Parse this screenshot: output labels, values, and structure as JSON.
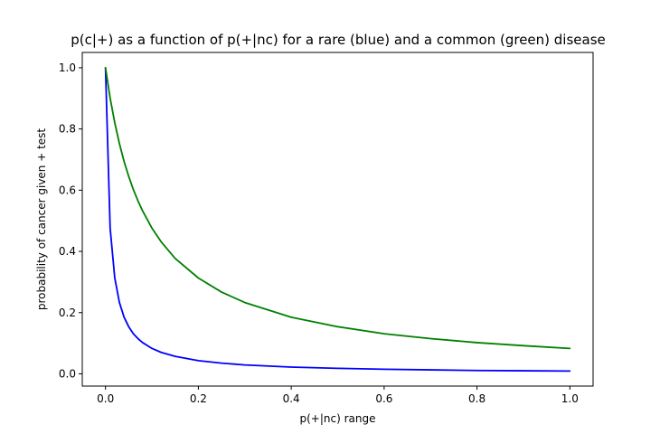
{
  "chart_data": {
    "type": "line",
    "title": "p(c|+) as a function of p(+|nc) for a rare (blue) and a common (green) disease",
    "xlabel": "p(+|nc) range",
    "ylabel": "probability of cancer given + test",
    "xlim": [
      -0.05,
      1.05
    ],
    "ylim": [
      -0.04,
      1.05
    ],
    "xticks": [
      0.0,
      0.2,
      0.4,
      0.6,
      0.8,
      1.0
    ],
    "xtick_labels": [
      "0.0",
      "0.2",
      "0.4",
      "0.6",
      "0.8",
      "1.0"
    ],
    "yticks": [
      0.0,
      0.2,
      0.4,
      0.6,
      0.8,
      1.0
    ],
    "ytick_labels": [
      "0.0",
      "0.2",
      "0.4",
      "0.6",
      "0.8",
      "1.0"
    ],
    "grid": false,
    "x": [
      0.0,
      0.01,
      0.02,
      0.03,
      0.04,
      0.05,
      0.06,
      0.07,
      0.08,
      0.1,
      0.12,
      0.15,
      0.2,
      0.25,
      0.3,
      0.4,
      0.5,
      0.6,
      0.7,
      0.8,
      0.9,
      1.0
    ],
    "series": [
      {
        "color": "#0000ff",
        "values": [
          1.0,
          0.476,
          0.313,
          0.233,
          0.185,
          0.154,
          0.131,
          0.115,
          0.102,
          0.083,
          0.07,
          0.057,
          0.043,
          0.035,
          0.029,
          0.022,
          0.018,
          0.015,
          0.013,
          0.011,
          0.01,
          0.009
        ]
      },
      {
        "color": "#008000",
        "values": [
          1.0,
          0.901,
          0.82,
          0.752,
          0.694,
          0.645,
          0.602,
          0.565,
          0.532,
          0.476,
          0.431,
          0.377,
          0.313,
          0.267,
          0.233,
          0.185,
          0.154,
          0.131,
          0.115,
          0.102,
          0.092,
          0.083
        ]
      }
    ]
  }
}
